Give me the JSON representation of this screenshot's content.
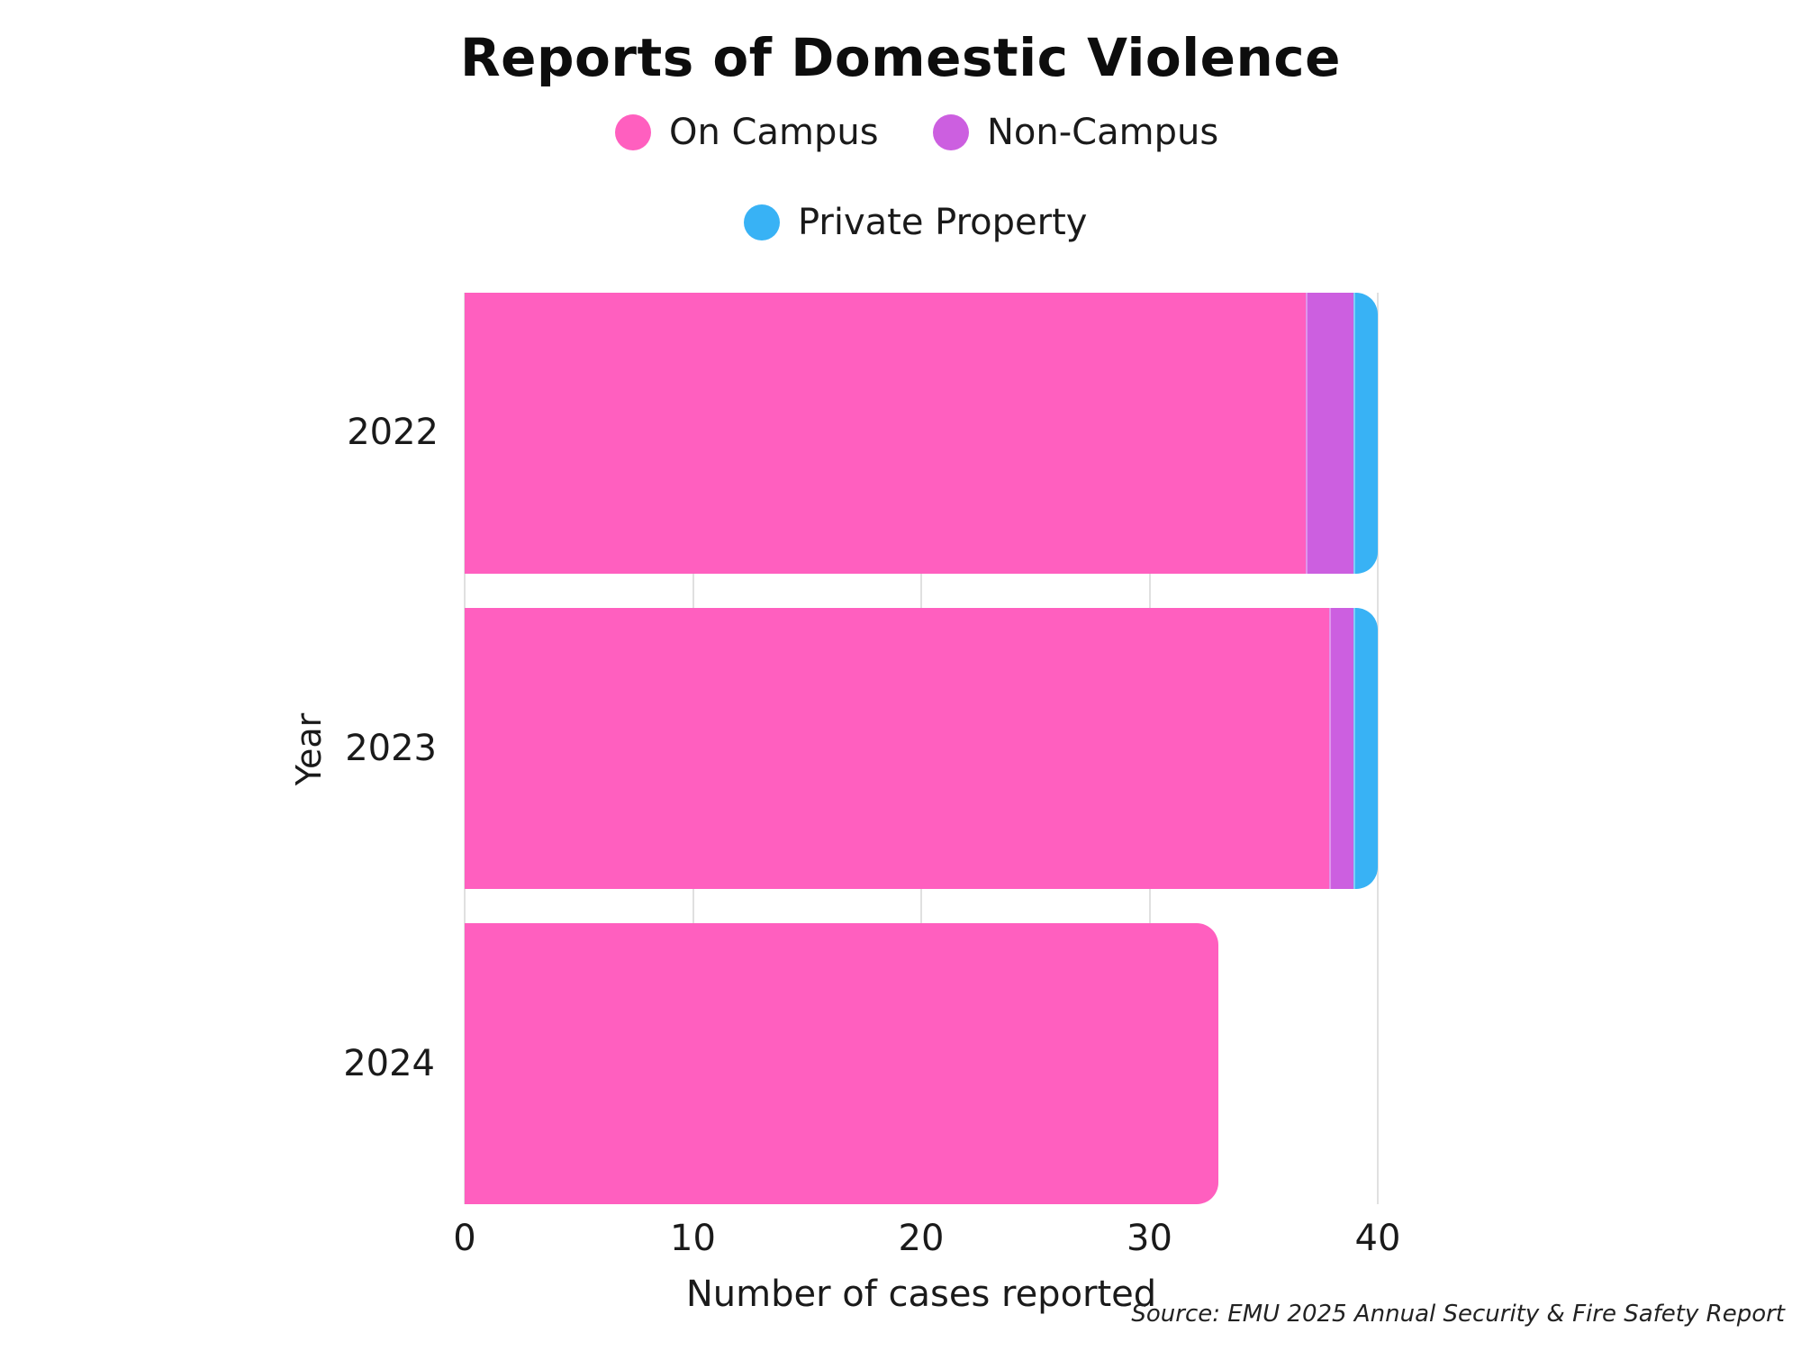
{
  "chart_data": {
    "type": "bar",
    "orientation": "horizontal",
    "stacked": true,
    "title": "Reports of Domestic Violence",
    "xlabel": "Number of cases reported",
    "ylabel": "Year",
    "categories": [
      "2022",
      "2023",
      "2024"
    ],
    "series": [
      {
        "name": "On Campus",
        "color": "#ff5fbf",
        "values": [
          37,
          38,
          33
        ]
      },
      {
        "name": "Non-Campus",
        "color": "#cc5fe0",
        "values": [
          2,
          1,
          0
        ]
      },
      {
        "name": "Private Property",
        "color": "#38b2f5",
        "values": [
          1,
          1,
          0
        ]
      }
    ],
    "xlim": [
      0,
      40
    ],
    "xticks": [
      "0",
      "10",
      "20",
      "30",
      "40"
    ],
    "grid": "vertical",
    "legend_position": "top",
    "source": "Source: EMU 2025 Annual Security & Fire Safety Report"
  },
  "legend": [
    {
      "label": "On Campus",
      "color": "#ff5fbf"
    },
    {
      "label": "Non-Campus",
      "color": "#cc5fe0"
    },
    {
      "label": "Private Property",
      "color": "#38b2f5"
    }
  ]
}
